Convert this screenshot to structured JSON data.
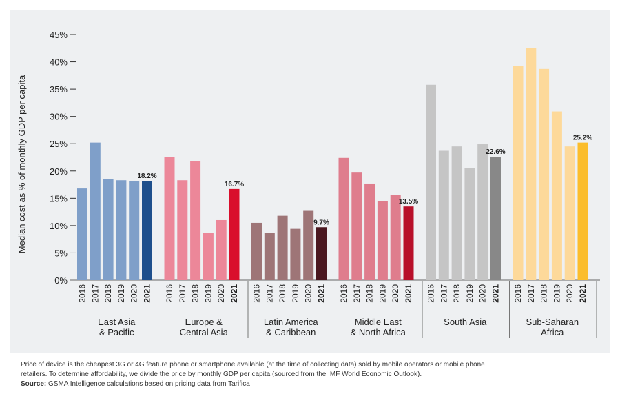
{
  "chart_data": {
    "type": "bar",
    "ylabel": "Median cost as % of monthly GDP per capita",
    "ylim": [
      0,
      45
    ],
    "yticks": [
      0,
      5,
      10,
      15,
      20,
      25,
      30,
      35,
      40,
      45
    ],
    "ytick_labels": [
      "0%",
      "5%",
      "10%",
      "15%",
      "20%",
      "25%",
      "30%",
      "35%",
      "40%",
      "45%"
    ],
    "years": [
      "2016",
      "2017",
      "2018",
      "2019",
      "2020",
      "2021"
    ],
    "groups": [
      {
        "name": "East Asia\n& Pacific",
        "values": [
          16.8,
          25.2,
          18.5,
          18.3,
          18.2,
          18.2
        ],
        "label": "18.2%",
        "color": "#7f9fc9",
        "highlight": "#1e4f8c"
      },
      {
        "name": "Europe &\nCentral Asia",
        "values": [
          22.5,
          18.3,
          21.8,
          8.7,
          11.0,
          16.7
        ],
        "label": "16.7%",
        "color": "#ec8799",
        "highlight": "#d90f2c"
      },
      {
        "name": "Latin America\n& Caribbean",
        "values": [
          10.5,
          8.7,
          11.8,
          9.4,
          12.7,
          9.7
        ],
        "label": "9.7%",
        "color": "#9e7577",
        "highlight": "#4a1820"
      },
      {
        "name": "Middle East\n& North Africa",
        "values": [
          22.4,
          19.7,
          17.7,
          14.5,
          15.6,
          13.5
        ],
        "label": "13.5%",
        "color": "#df7d8d",
        "highlight": "#b8102a"
      },
      {
        "name": "South Asia",
        "values": [
          35.8,
          23.7,
          24.5,
          20.5,
          24.9,
          22.6
        ],
        "label": "22.6%",
        "color": "#c5c5c5",
        "highlight": "#888888"
      },
      {
        "name": "Sub-Saharan\nAfrica",
        "values": [
          39.3,
          42.5,
          38.7,
          30.9,
          24.5,
          25.2
        ],
        "label": "25.2%",
        "color": "#fdd99a",
        "highlight": "#fbbd2c"
      }
    ]
  },
  "footnote": {
    "line1": "Price of device is the cheapest 3G or 4G feature phone or smartphone available (at the time of collecting data) sold by mobile operators or mobile phone",
    "line2": "retailers. To determine affordability, we divide the price by monthly GDP per capita (sourced from the IMF World Economic Outlook).",
    "source_label": "Source:",
    "source_text": " GSMA Intelligence calculations based on pricing data from Tarifica"
  }
}
